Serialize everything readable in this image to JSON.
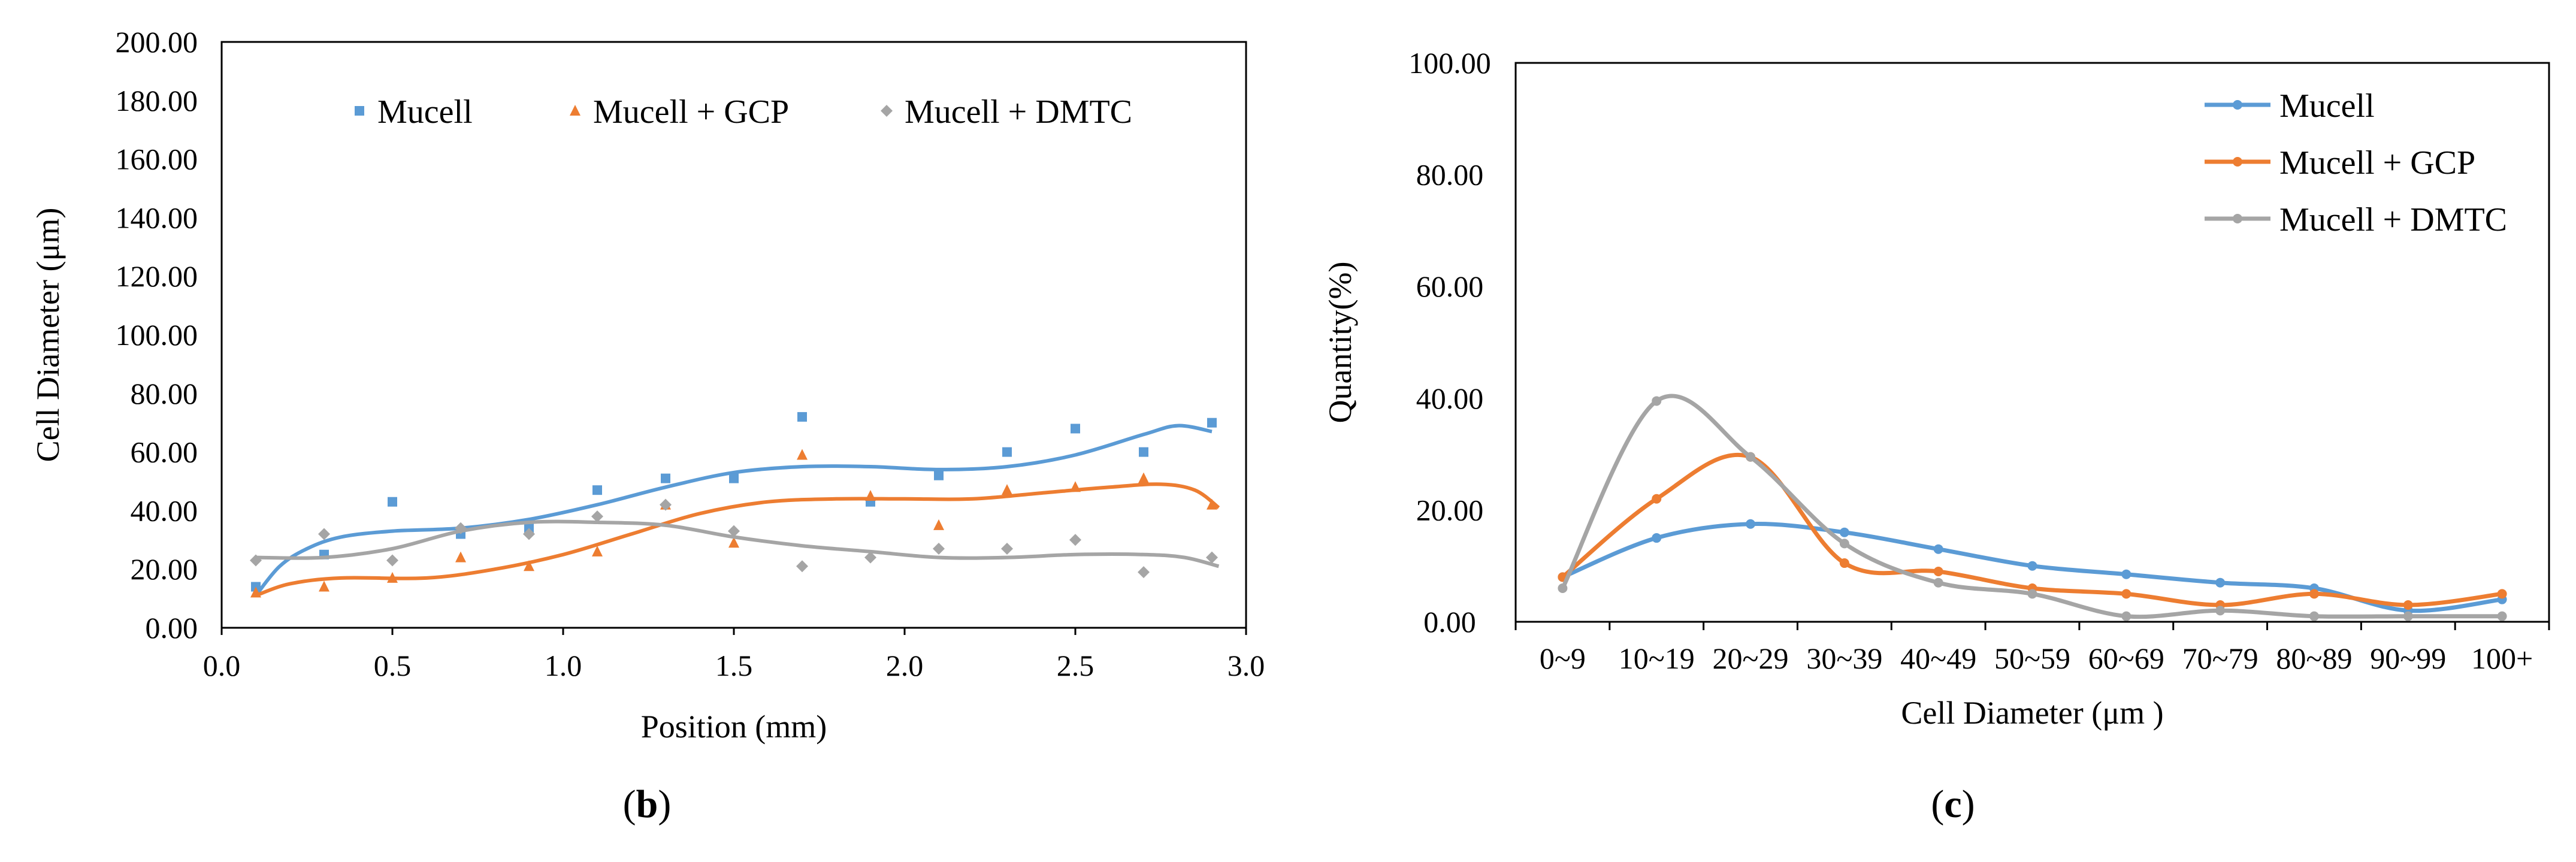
{
  "panels": [
    {
      "id": "b",
      "label_prefix": "(",
      "label": "b",
      "label_suffix": ")"
    },
    {
      "id": "c",
      "label_prefix": "(",
      "label": "c",
      "label_suffix": ")"
    }
  ],
  "colors": {
    "mucell": "#5b9bd5",
    "gcp": "#ed7d31",
    "dmtc": "#a5a5a5",
    "axis": "#000000"
  },
  "chart_data": [
    {
      "panel": "b",
      "type": "scatter",
      "title": "",
      "xlabel": "Position (mm)",
      "ylabel": "Cell Diameter (μm)",
      "xlim": [
        0,
        3
      ],
      "ylim": [
        0,
        200
      ],
      "xticks": [
        0,
        0.5,
        1,
        1.5,
        2,
        2.5,
        3
      ],
      "xtick_labels": [
        "0.0",
        "0.5",
        "1.0",
        "1.5",
        "2.0",
        "2.5",
        "3.0"
      ],
      "yticks": [
        0,
        20,
        40,
        60,
        80,
        100,
        120,
        140,
        160,
        180,
        200
      ],
      "ytick_labels": [
        "0.00",
        "20.00",
        "40.00",
        "60.00",
        "80.00",
        "100.00",
        "120.00",
        "140.00",
        "160.00",
        "180.00",
        "200.00"
      ],
      "legend_position": "top",
      "grid": false,
      "trendlines": true,
      "series": [
        {
          "name": "Mucell",
          "marker": "square",
          "color": "#5b9bd5",
          "x": [
            0.1,
            0.3,
            0.5,
            0.7,
            0.9,
            1.1,
            1.3,
            1.5,
            1.7,
            1.9,
            2.1,
            2.3,
            2.5,
            2.7,
            2.9
          ],
          "y": [
            14,
            25,
            43,
            32,
            34,
            47,
            51,
            51,
            72,
            43,
            52,
            60,
            68,
            60,
            70
          ],
          "trend": [
            [
              0.1,
              11
            ],
            [
              0.17,
              21
            ],
            [
              0.25,
              27
            ],
            [
              0.35,
              31
            ],
            [
              0.5,
              33
            ],
            [
              0.7,
              34
            ],
            [
              0.9,
              37
            ],
            [
              1.1,
              42
            ],
            [
              1.3,
              48
            ],
            [
              1.5,
              53
            ],
            [
              1.7,
              55
            ],
            [
              1.9,
              55
            ],
            [
              2.1,
              54
            ],
            [
              2.3,
              55
            ],
            [
              2.5,
              59
            ],
            [
              2.7,
              66
            ],
            [
              2.8,
              69
            ],
            [
              2.9,
              67
            ]
          ]
        },
        {
          "name": "Mucell + GCP",
          "marker": "triangle",
          "color": "#ed7d31",
          "x": [
            0.1,
            0.3,
            0.5,
            0.7,
            0.9,
            1.1,
            1.3,
            1.5,
            1.7,
            1.9,
            2.1,
            2.3,
            2.5,
            2.7,
            2.9
          ],
          "y": [
            12,
            14,
            17,
            24,
            21,
            26,
            42,
            29,
            59,
            45,
            35,
            47,
            48,
            51,
            42
          ],
          "trend": [
            [
              0.1,
              11
            ],
            [
              0.2,
              15
            ],
            [
              0.35,
              17
            ],
            [
              0.6,
              17
            ],
            [
              0.8,
              20
            ],
            [
              1.0,
              25
            ],
            [
              1.2,
              32
            ],
            [
              1.4,
              39
            ],
            [
              1.6,
              43
            ],
            [
              1.8,
              44
            ],
            [
              2.0,
              44
            ],
            [
              2.2,
              44
            ],
            [
              2.4,
              46
            ],
            [
              2.6,
              48
            ],
            [
              2.75,
              49
            ],
            [
              2.85,
              47
            ],
            [
              2.92,
              41
            ]
          ]
        },
        {
          "name": "Mucell + DMTC",
          "marker": "diamond",
          "color": "#a5a5a5",
          "x": [
            0.1,
            0.3,
            0.5,
            0.7,
            0.9,
            1.1,
            1.3,
            1.5,
            1.7,
            1.9,
            2.1,
            2.3,
            2.5,
            2.7,
            2.9
          ],
          "y": [
            23,
            32,
            23,
            34,
            32,
            38,
            42,
            33,
            21,
            24,
            27,
            27,
            30,
            19,
            24
          ],
          "trend": [
            [
              0.1,
              24
            ],
            [
              0.3,
              24
            ],
            [
              0.5,
              27
            ],
            [
              0.7,
              33
            ],
            [
              0.9,
              36
            ],
            [
              1.1,
              36
            ],
            [
              1.3,
              35
            ],
            [
              1.5,
              31
            ],
            [
              1.7,
              28
            ],
            [
              1.9,
              26
            ],
            [
              2.1,
              24
            ],
            [
              2.3,
              24
            ],
            [
              2.5,
              25
            ],
            [
              2.7,
              25
            ],
            [
              2.82,
              24
            ],
            [
              2.92,
              21
            ]
          ]
        }
      ]
    },
    {
      "panel": "c",
      "type": "line",
      "title": "",
      "xlabel": "Cell Diameter (μm )",
      "ylabel": "Quantity(%)",
      "ylim": [
        0,
        100
      ],
      "yticks": [
        0,
        20,
        40,
        60,
        80,
        100
      ],
      "ytick_labels": [
        "0.00",
        "20.00",
        "40.00",
        "60.00",
        "80.00",
        "100.00"
      ],
      "categories": [
        "0~9",
        "10~19",
        "20~29",
        "30~39",
        "40~49",
        "50~59",
        "60~69",
        "70~79",
        "80~89",
        "90~99",
        "100+"
      ],
      "legend_position": "top-right",
      "grid": false,
      "smoothed": true,
      "series": [
        {
          "name": "Mucell",
          "color": "#5b9bd5",
          "values": [
            8,
            15,
            17.5,
            16,
            13,
            10,
            8.5,
            7,
            6,
            2,
            4
          ]
        },
        {
          "name": "Mucell + GCP",
          "color": "#ed7d31",
          "values": [
            8,
            22,
            29.5,
            10.5,
            9,
            6,
            5,
            3,
            5,
            3,
            5
          ]
        },
        {
          "name": "Mucell + DMTC",
          "color": "#a5a5a5",
          "values": [
            6,
            39.5,
            29.5,
            14,
            7,
            5,
            1,
            2,
            1,
            1,
            1
          ]
        }
      ]
    }
  ]
}
